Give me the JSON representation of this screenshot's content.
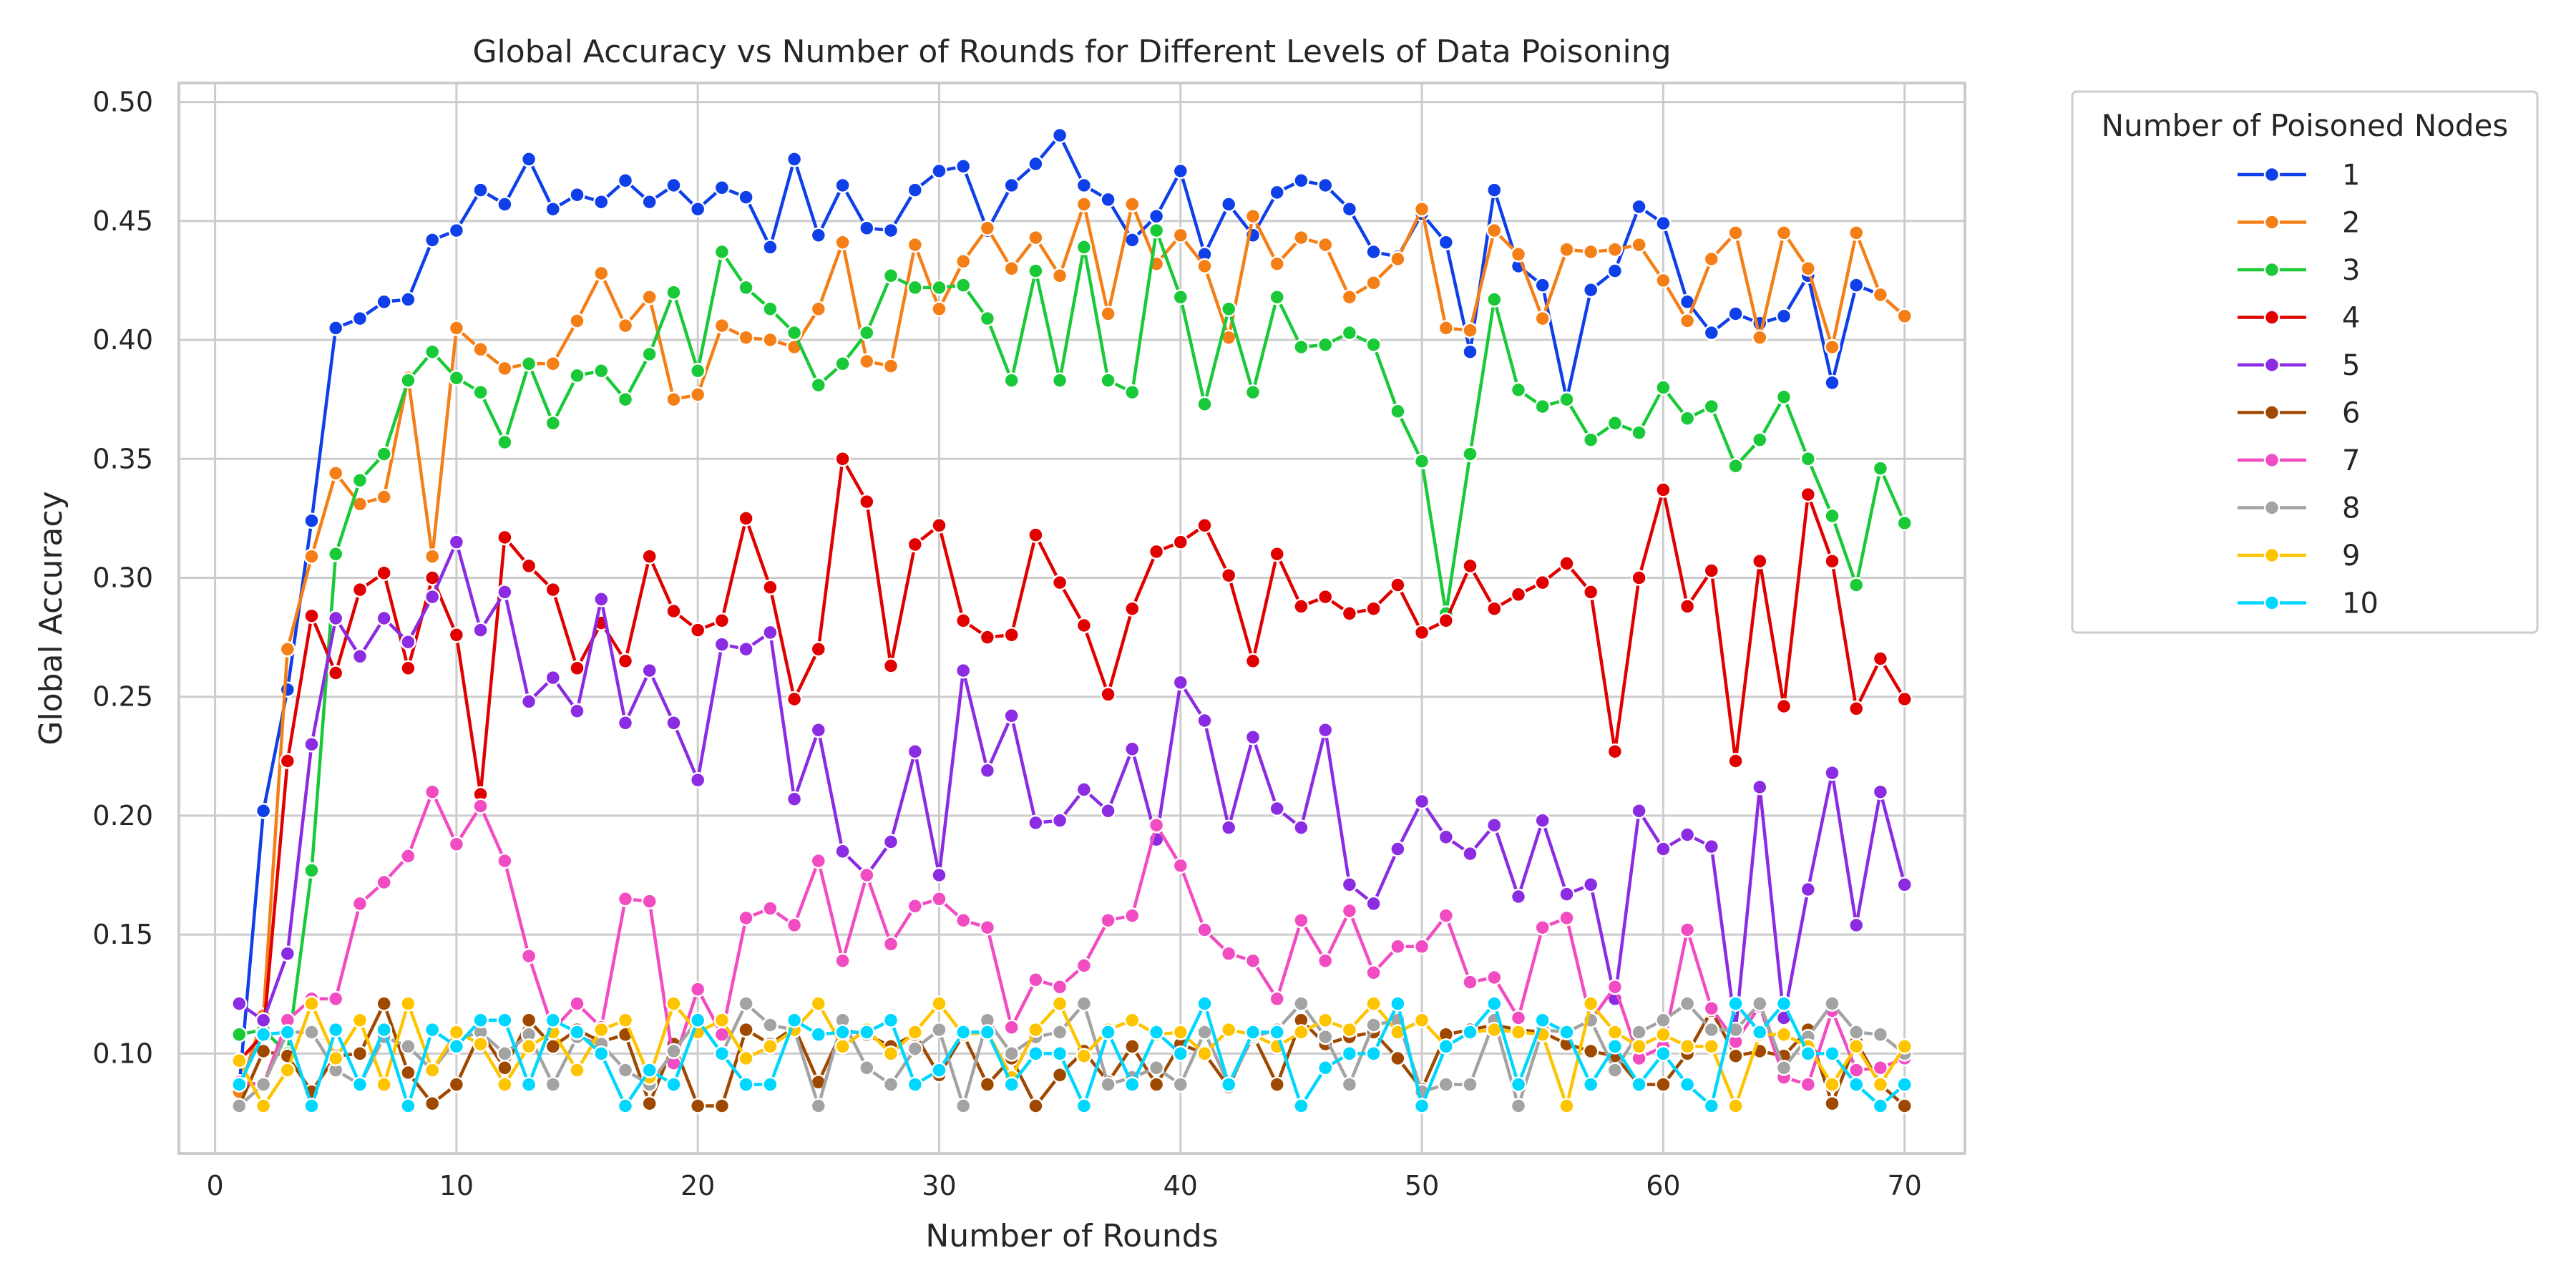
{
  "chart_data": {
    "type": "line",
    "title": "Global Accuracy vs Number of Rounds for Different Levels of Data Poisoning",
    "xlabel": "Number of Rounds",
    "ylabel": "Global Accuracy",
    "xlim": [
      -1.5,
      72.5
    ],
    "ylim": [
      0.058,
      0.508
    ],
    "xticks": [
      0,
      10,
      20,
      30,
      40,
      50,
      60,
      70
    ],
    "yticks": [
      0.1,
      0.15,
      0.2,
      0.25,
      0.3,
      0.35,
      0.4,
      0.45,
      0.5
    ],
    "ytick_labels": [
      "0.10",
      "0.15",
      "0.20",
      "0.25",
      "0.30",
      "0.35",
      "0.40",
      "0.45",
      "0.50"
    ],
    "grid": true,
    "marker": "circle",
    "legend": {
      "title": "Number of Poisoned Nodes",
      "placement": "outside-right"
    },
    "series": [
      {
        "name": "1",
        "color": "#0f3fe8",
        "values": [
          0.086,
          0.202,
          0.253,
          0.324,
          0.405,
          0.409,
          0.416,
          0.417,
          0.442,
          0.446,
          0.463,
          0.457,
          0.476,
          0.455,
          0.461,
          0.458,
          0.467,
          0.458,
          0.465,
          0.455,
          0.464,
          0.46,
          0.439,
          0.476,
          0.444,
          0.465,
          0.447,
          0.446,
          0.463,
          0.471,
          0.473,
          0.446,
          0.465,
          0.474,
          0.486,
          0.465,
          0.459,
          0.442,
          0.452,
          0.471,
          0.436,
          0.457,
          0.444,
          0.462,
          0.467,
          0.465,
          0.455,
          0.437,
          0.435,
          0.453,
          0.441,
          0.395,
          0.463,
          0.431,
          0.423,
          0.375,
          0.421,
          0.429,
          0.456,
          0.449,
          0.416,
          0.403,
          0.411,
          0.407,
          0.41,
          0.427,
          0.382,
          0.423,
          0.419,
          0.41
        ]
      },
      {
        "name": "2",
        "color": "#f57f17",
        "values": [
          0.084,
          0.116,
          0.27,
          0.309,
          0.344,
          0.331,
          0.334,
          0.384,
          0.309,
          0.405,
          0.396,
          0.388,
          0.39,
          0.39,
          0.408,
          0.428,
          0.406,
          0.418,
          0.375,
          0.377,
          0.406,
          0.401,
          0.4,
          0.397,
          0.413,
          0.441,
          0.391,
          0.389,
          0.44,
          0.413,
          0.433,
          0.447,
          0.43,
          0.443,
          0.427,
          0.457,
          0.411,
          0.457,
          0.432,
          0.444,
          0.431,
          0.401,
          0.452,
          0.432,
          0.443,
          0.44,
          0.418,
          0.424,
          0.434,
          0.455,
          0.405,
          0.404,
          0.446,
          0.436,
          0.409,
          0.438,
          0.437,
          0.438,
          0.44,
          0.425,
          0.408,
          0.434,
          0.445,
          0.401,
          0.445,
          0.43,
          0.397,
          0.445,
          0.419,
          0.41
        ]
      },
      {
        "name": "3",
        "color": "#1ac938",
        "values": [
          0.108,
          0.11,
          0.1,
          0.177,
          0.31,
          0.341,
          0.352,
          0.383,
          0.395,
          0.384,
          0.378,
          0.357,
          0.39,
          0.365,
          0.385,
          0.387,
          0.375,
          0.394,
          0.42,
          0.387,
          0.437,
          0.422,
          0.413,
          0.403,
          0.381,
          0.39,
          0.403,
          0.427,
          0.422,
          0.422,
          0.423,
          0.409,
          0.383,
          0.429,
          0.383,
          0.439,
          0.383,
          0.378,
          0.446,
          0.418,
          0.373,
          0.413,
          0.378,
          0.418,
          0.397,
          0.398,
          0.403,
          0.398,
          0.37,
          0.349,
          0.285,
          0.352,
          0.417,
          0.379,
          0.372,
          0.375,
          0.358,
          0.365,
          0.361,
          0.38,
          0.367,
          0.372,
          0.347,
          0.358,
          0.376,
          0.35,
          0.326,
          0.297,
          0.346,
          0.323
        ]
      },
      {
        "name": "4",
        "color": "#e00000",
        "values": [
          0.097,
          0.108,
          0.223,
          0.284,
          0.26,
          0.295,
          0.302,
          0.262,
          0.3,
          0.276,
          0.209,
          0.317,
          0.305,
          0.295,
          0.262,
          0.281,
          0.265,
          0.309,
          0.286,
          0.278,
          0.282,
          0.325,
          0.296,
          0.249,
          0.27,
          0.35,
          0.332,
          0.263,
          0.314,
          0.322,
          0.282,
          0.275,
          0.276,
          0.318,
          0.298,
          0.28,
          0.251,
          0.287,
          0.311,
          0.315,
          0.322,
          0.301,
          0.265,
          0.31,
          0.288,
          0.292,
          0.285,
          0.287,
          0.297,
          0.277,
          0.282,
          0.305,
          0.287,
          0.293,
          0.298,
          0.306,
          0.294,
          0.227,
          0.3,
          0.337,
          0.288,
          0.303,
          0.223,
          0.307,
          0.246,
          0.335,
          0.307,
          0.245,
          0.266,
          0.249
        ]
      },
      {
        "name": "5",
        "color": "#8b2be2",
        "values": [
          0.121,
          0.114,
          0.142,
          0.23,
          0.283,
          0.267,
          0.283,
          0.273,
          0.292,
          0.315,
          0.278,
          0.294,
          0.248,
          0.258,
          0.244,
          0.291,
          0.239,
          0.261,
          0.239,
          0.215,
          0.272,
          0.27,
          0.277,
          0.207,
          0.236,
          0.185,
          0.175,
          0.189,
          0.227,
          0.175,
          0.261,
          0.219,
          0.242,
          0.197,
          0.198,
          0.211,
          0.202,
          0.228,
          0.19,
          0.256,
          0.24,
          0.195,
          0.233,
          0.203,
          0.195,
          0.236,
          0.171,
          0.163,
          0.186,
          0.206,
          0.191,
          0.184,
          0.196,
          0.166,
          0.198,
          0.167,
          0.171,
          0.123,
          0.202,
          0.186,
          0.192,
          0.187,
          0.11,
          0.212,
          0.115,
          0.169,
          0.218,
          0.154,
          0.21,
          0.171
        ]
      },
      {
        "name": "6",
        "color": "#9f4800",
        "values": [
          0.078,
          0.101,
          0.099,
          0.084,
          0.099,
          0.1,
          0.121,
          0.092,
          0.079,
          0.087,
          0.109,
          0.094,
          0.114,
          0.103,
          0.11,
          0.105,
          0.108,
          0.079,
          0.104,
          0.078,
          0.078,
          0.11,
          0.104,
          0.111,
          0.088,
          0.11,
          0.108,
          0.103,
          0.108,
          0.091,
          0.108,
          0.087,
          0.098,
          0.078,
          0.091,
          0.101,
          0.088,
          0.103,
          0.087,
          0.104,
          0.1,
          0.086,
          0.108,
          0.087,
          0.114,
          0.104,
          0.107,
          0.109,
          0.098,
          0.085,
          0.108,
          0.11,
          0.112,
          0.11,
          0.109,
          0.104,
          0.101,
          0.099,
          0.087,
          0.087,
          0.1,
          0.118,
          0.099,
          0.101,
          0.099,
          0.11,
          0.079,
          0.105,
          0.087,
          0.078
        ]
      },
      {
        "name": "7",
        "color": "#f14cc1",
        "values": [
          0.088,
          0.087,
          0.114,
          0.123,
          0.123,
          0.163,
          0.172,
          0.183,
          0.21,
          0.188,
          0.204,
          0.181,
          0.141,
          0.11,
          0.121,
          0.111,
          0.165,
          0.164,
          0.096,
          0.127,
          0.108,
          0.157,
          0.161,
          0.154,
          0.181,
          0.139,
          0.175,
          0.146,
          0.162,
          0.165,
          0.156,
          0.153,
          0.111,
          0.131,
          0.128,
          0.137,
          0.156,
          0.158,
          0.196,
          0.179,
          0.152,
          0.142,
          0.139,
          0.123,
          0.156,
          0.139,
          0.16,
          0.134,
          0.145,
          0.145,
          0.158,
          0.13,
          0.132,
          0.115,
          0.153,
          0.157,
          0.114,
          0.128,
          0.098,
          0.103,
          0.152,
          0.119,
          0.105,
          0.12,
          0.09,
          0.087,
          0.118,
          0.093,
          0.094,
          0.098
        ]
      },
      {
        "name": "8",
        "color": "#a3a3a3",
        "values": [
          0.078,
          0.087,
          0.109,
          0.109,
          0.093,
          0.087,
          0.107,
          0.103,
          0.093,
          0.106,
          0.109,
          0.1,
          0.108,
          0.087,
          0.107,
          0.104,
          0.093,
          0.087,
          0.101,
          0.114,
          0.1,
          0.121,
          0.112,
          0.11,
          0.078,
          0.114,
          0.094,
          0.087,
          0.102,
          0.11,
          0.078,
          0.114,
          0.1,
          0.107,
          0.109,
          0.121,
          0.087,
          0.09,
          0.094,
          0.087,
          0.109,
          0.087,
          0.107,
          0.11,
          0.121,
          0.107,
          0.087,
          0.112,
          0.114,
          0.084,
          0.087,
          0.087,
          0.114,
          0.078,
          0.11,
          0.109,
          0.114,
          0.093,
          0.109,
          0.114,
          0.121,
          0.11,
          0.11,
          0.121,
          0.094,
          0.107,
          0.121,
          0.109,
          0.108,
          0.1
        ]
      },
      {
        "name": "9",
        "color": "#ffc400",
        "values": [
          0.097,
          0.078,
          0.093,
          0.121,
          0.098,
          0.114,
          0.087,
          0.121,
          0.093,
          0.109,
          0.104,
          0.087,
          0.103,
          0.109,
          0.093,
          0.11,
          0.114,
          0.09,
          0.121,
          0.109,
          0.114,
          0.098,
          0.103,
          0.11,
          0.121,
          0.103,
          0.11,
          0.1,
          0.109,
          0.121,
          0.108,
          0.109,
          0.09,
          0.11,
          0.121,
          0.099,
          0.11,
          0.114,
          0.108,
          0.109,
          0.1,
          0.11,
          0.108,
          0.103,
          0.109,
          0.114,
          0.11,
          0.121,
          0.109,
          0.114,
          0.103,
          0.109,
          0.11,
          0.109,
          0.108,
          0.078,
          0.121,
          0.109,
          0.103,
          0.108,
          0.103,
          0.103,
          0.078,
          0.108,
          0.108,
          0.103,
          0.087,
          0.103,
          0.087,
          0.103
        ]
      },
      {
        "name": "10",
        "color": "#00d7ff",
        "values": [
          0.087,
          0.108,
          0.109,
          0.078,
          0.11,
          0.087,
          0.11,
          0.078,
          0.11,
          0.103,
          0.114,
          0.114,
          0.087,
          0.114,
          0.109,
          0.1,
          0.078,
          0.093,
          0.087,
          0.114,
          0.1,
          0.087,
          0.087,
          0.114,
          0.108,
          0.109,
          0.109,
          0.114,
          0.087,
          0.093,
          0.109,
          0.109,
          0.087,
          0.1,
          0.1,
          0.078,
          0.109,
          0.087,
          0.109,
          0.1,
          0.121,
          0.087,
          0.109,
          0.109,
          0.078,
          0.094,
          0.1,
          0.1,
          0.121,
          0.078,
          0.103,
          0.109,
          0.121,
          0.087,
          0.114,
          0.109,
          0.087,
          0.103,
          0.087,
          0.1,
          0.087,
          0.078,
          0.121,
          0.109,
          0.121,
          0.1,
          0.1,
          0.087,
          0.078,
          0.087
        ]
      }
    ]
  }
}
